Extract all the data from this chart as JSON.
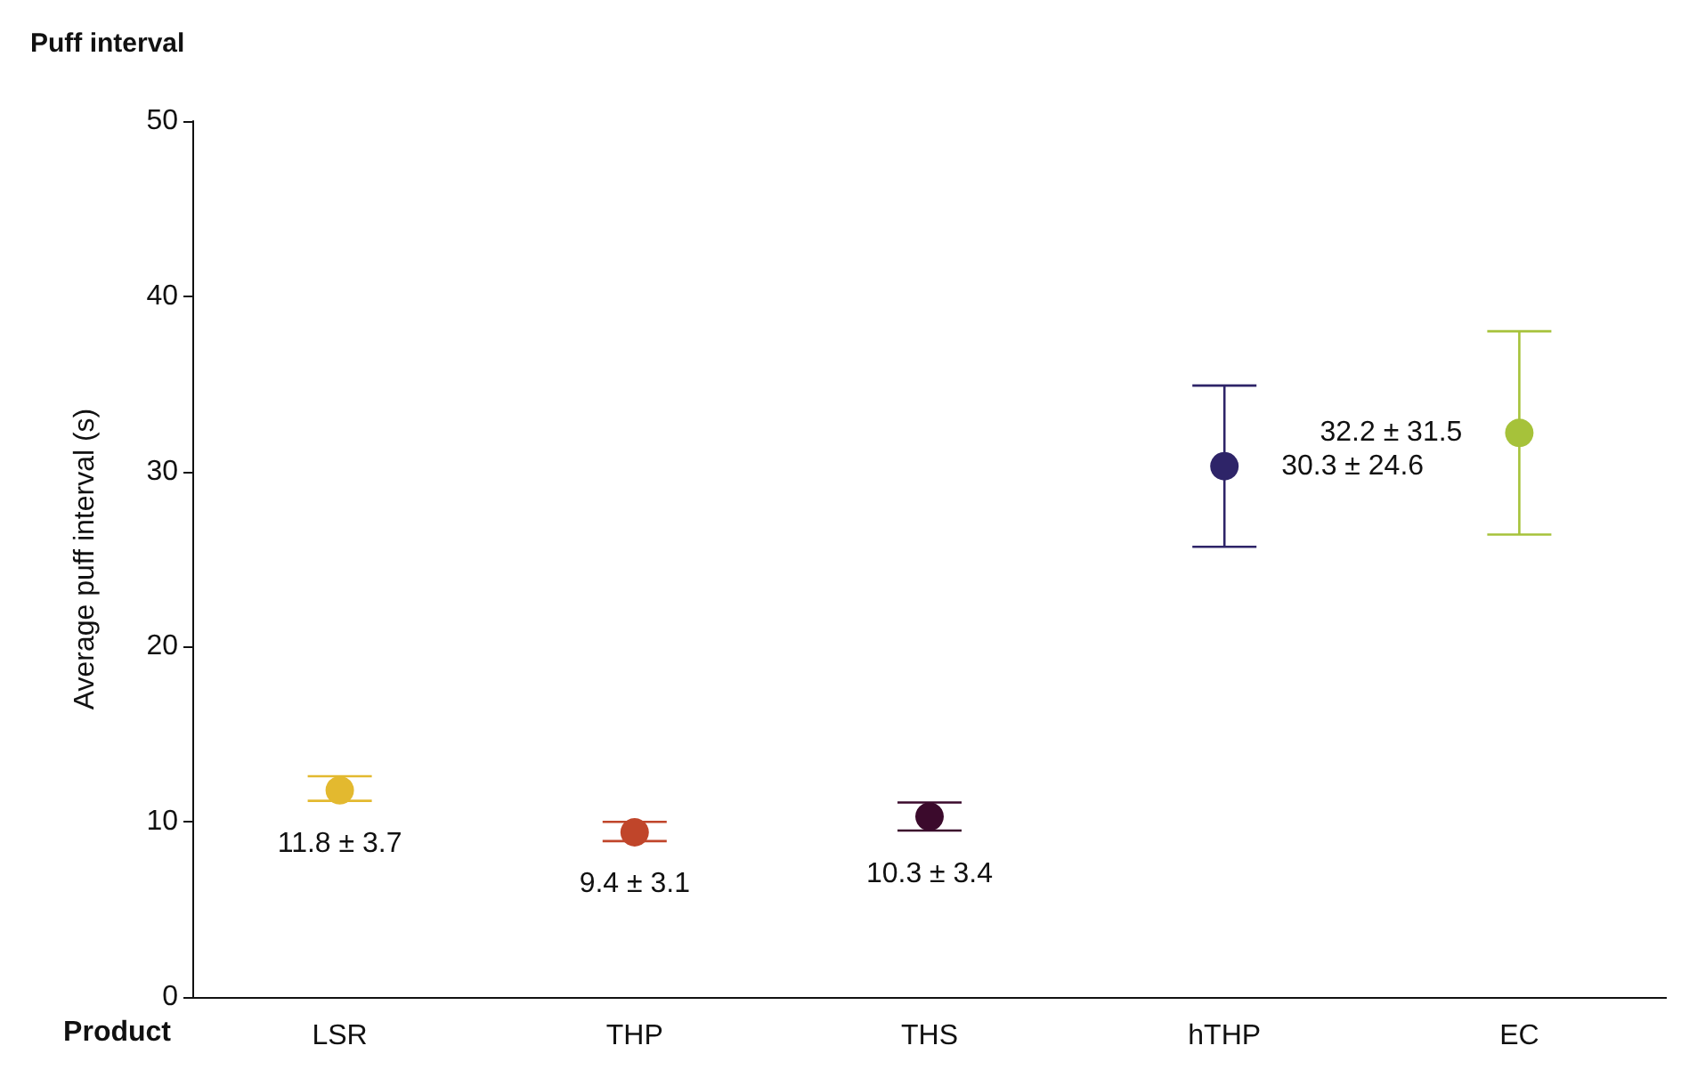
{
  "chart_data": {
    "type": "scatter",
    "title": "Puff interval",
    "xlabel": "Product",
    "ylabel": "Average puff interval (s)",
    "categories": [
      "LSR",
      "THP",
      "THS",
      "hTHP",
      "EC"
    ],
    "values": [
      11.8,
      9.4,
      10.3,
      30.3,
      32.2
    ],
    "colors": [
      "#e3b92f",
      "#c0452a",
      "#3b0a2c",
      "#2e2468",
      "#a6c23a"
    ],
    "errors": [
      [
        11.2,
        12.6
      ],
      [
        8.9,
        10.0
      ],
      [
        9.5,
        11.1
      ],
      [
        25.7,
        34.9
      ],
      [
        26.4,
        38.0
      ]
    ],
    "value_labels": [
      "11.8 ± 3.7",
      "9.4 ± 3.1",
      "10.3 ± 3.4",
      "30.3 ± 24.6",
      "32.2 ± 31.5"
    ],
    "ylim": [
      0,
      50
    ],
    "yticks": [
      0,
      10,
      20,
      30,
      40,
      50
    ],
    "grid": false,
    "marker": "circle"
  }
}
